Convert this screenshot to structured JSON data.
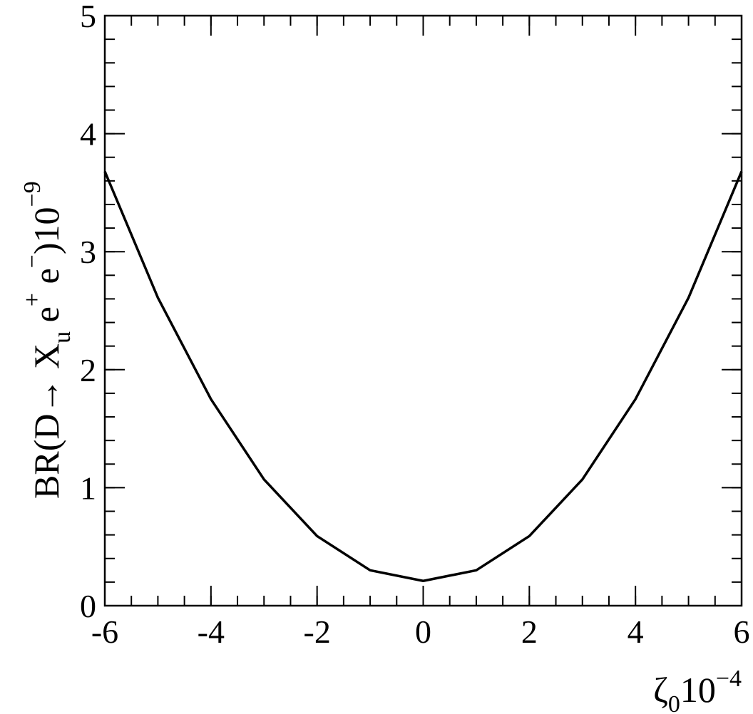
{
  "chart_data": {
    "type": "line",
    "x": [
      -6,
      -5,
      -4,
      -3,
      -2,
      -1,
      0,
      1,
      2,
      3,
      4,
      5,
      6
    ],
    "series": [
      {
        "color": "#000000",
        "values": [
          3.68,
          2.61,
          1.75,
          1.07,
          0.59,
          0.3,
          0.21,
          0.3,
          0.59,
          1.07,
          1.75,
          2.61,
          3.68
        ]
      }
    ],
    "xlim": [
      -6,
      6
    ],
    "xticks": [
      -6,
      -4,
      -2,
      0,
      2,
      4,
      6
    ],
    "ylim": [
      0,
      5
    ],
    "yticks": [
      0,
      1,
      2,
      3,
      4,
      5
    ],
    "xlabel": [
      "ζ",
      "0",
      "10",
      "−4"
    ],
    "ylabel": [
      "BR(D→ X",
      "u",
      " e",
      "+",
      " e",
      "−",
      ")10",
      "−9"
    ]
  }
}
